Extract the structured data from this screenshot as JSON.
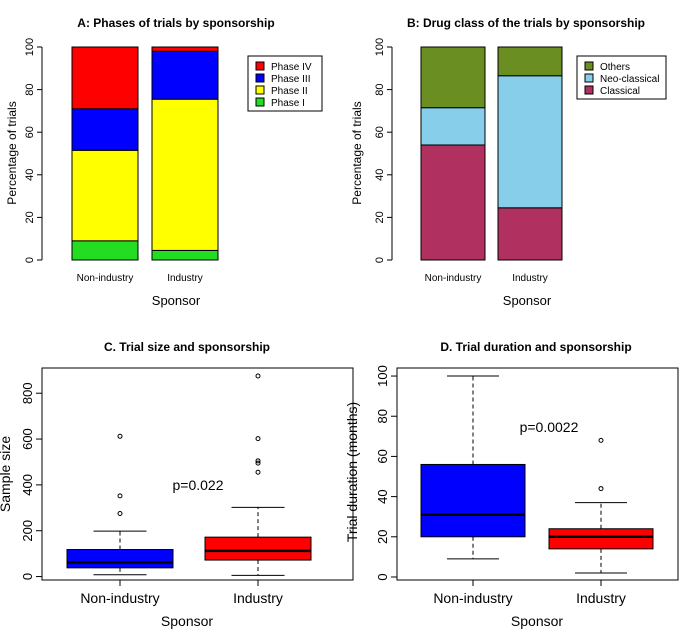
{
  "chart_data": [
    {
      "type": "bar",
      "stacked": true,
      "title": "A: Phases of trials by sponsorship",
      "xlabel": "Sponsor",
      "ylabel": "Percentage of trials",
      "ylim": [
        0,
        100
      ],
      "yticks": [
        "0",
        "20",
        "40",
        "60",
        "80",
        "100"
      ],
      "categories": [
        "Non-industry",
        "Industry"
      ],
      "series": [
        {
          "name": "Phase I",
          "color": "#22dd22",
          "values": [
            9,
            4.5
          ]
        },
        {
          "name": "Phase II",
          "color": "#ffff00",
          "values": [
            42.5,
            71
          ]
        },
        {
          "name": "Phase III",
          "color": "#0000ff",
          "values": [
            19.5,
            22.5
          ]
        },
        {
          "name": "Phase IV",
          "color": "#ff0000",
          "values": [
            29,
            2
          ]
        }
      ],
      "legend_order": [
        "Phase IV",
        "Phase III",
        "Phase II",
        "Phase I"
      ],
      "legend_position": "top-right"
    },
    {
      "type": "bar",
      "stacked": true,
      "title": "B: Drug class of the trials by sponsorship",
      "xlabel": "Sponsor",
      "ylabel": "Percentage of trials",
      "ylim": [
        0,
        100
      ],
      "yticks": [
        "0",
        "20",
        "40",
        "60",
        "80",
        "100"
      ],
      "categories": [
        "Non-industry",
        "Industry"
      ],
      "series": [
        {
          "name": "Classical",
          "color": "#b03060",
          "values": [
            54,
            24.5
          ]
        },
        {
          "name": "Neo-classical",
          "color": "#87ceeb",
          "values": [
            17.5,
            62
          ]
        },
        {
          "name": "Others",
          "color": "#6b8e23",
          "values": [
            28.5,
            13.5
          ]
        }
      ],
      "legend_order": [
        "Others",
        "Neo-classical",
        "Classical"
      ],
      "legend_position": "top-right"
    },
    {
      "type": "boxplot",
      "title": "C. Trial size and sponsorship",
      "xlabel": "Sponsor",
      "ylabel": "Sample size",
      "ylim": [
        -15,
        910
      ],
      "yticks": [
        "0",
        "200",
        "400",
        "600",
        "800"
      ],
      "categories": [
        "Non-industry",
        "Industry"
      ],
      "annotation": "p=0.022",
      "boxes": [
        {
          "category": "Non-industry",
          "color": "#0000ff",
          "whisker_low": 8,
          "q1": 38,
          "median": 62,
          "q3": 118,
          "whisker_high": 198,
          "outliers": [
            275,
            352,
            612
          ]
        },
        {
          "category": "Industry",
          "color": "#ff0000",
          "whisker_low": 5,
          "q1": 72,
          "median": 112,
          "q3": 172,
          "whisker_high": 302,
          "outliers": [
            455,
            495,
            505,
            602,
            875
          ]
        }
      ]
    },
    {
      "type": "boxplot",
      "title": "D. Trial duration and sponsorship",
      "xlabel": "Sponsor",
      "ylabel": "Trial duration (months)",
      "ylim": [
        -1.5,
        104
      ],
      "yticks": [
        "0",
        "20",
        "40",
        "60",
        "80",
        "100"
      ],
      "categories": [
        "Non-industry",
        "Industry"
      ],
      "annotation": "p=0.0022",
      "boxes": [
        {
          "category": "Non-industry",
          "color": "#0000ff",
          "whisker_low": 9,
          "q1": 20,
          "median": 31,
          "q3": 56,
          "whisker_high": 100,
          "outliers": []
        },
        {
          "category": "Industry",
          "color": "#ff0000",
          "whisker_low": 2,
          "q1": 14,
          "median": 20,
          "q3": 24,
          "whisker_high": 37,
          "outliers": [
            44,
            68
          ]
        }
      ]
    }
  ]
}
